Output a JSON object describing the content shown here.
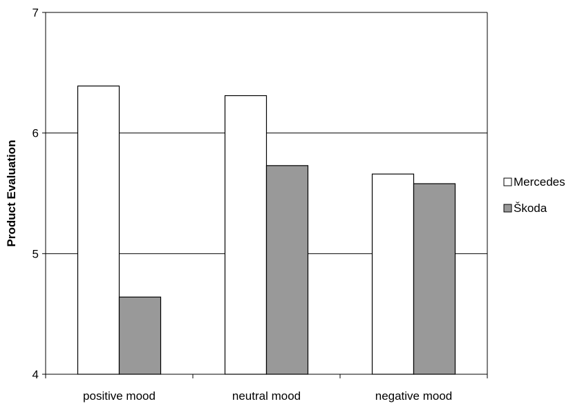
{
  "chart_data": {
    "type": "bar",
    "categories": [
      "positive mood",
      "neutral mood",
      "negative mood"
    ],
    "series": [
      {
        "name": "Mercedes",
        "values": [
          6.39,
          6.31,
          5.66
        ],
        "color": "#ffffff"
      },
      {
        "name": "Škoda",
        "values": [
          4.64,
          5.73,
          5.58
        ],
        "color": "#999999"
      }
    ],
    "xlabel": "",
    "ylabel": "Product Evaluation",
    "ylim": [
      4,
      7
    ],
    "yticks": [
      4,
      5,
      6,
      7
    ],
    "grid": true,
    "legend_position": "right"
  }
}
